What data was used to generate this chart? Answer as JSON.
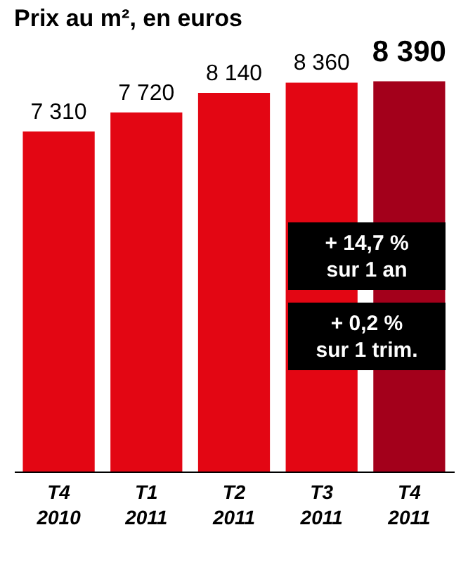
{
  "chart_data": {
    "type": "bar",
    "title": "Prix au m², en euros",
    "categories": [
      "T4\n2010",
      "T1\n2011",
      "T2\n2011",
      "T3\n2011",
      "T4\n2011"
    ],
    "values": [
      7310,
      7720,
      8140,
      8360,
      8390
    ],
    "colors": [
      "#e30613",
      "#e30613",
      "#e30613",
      "#e30613",
      "#a3001b"
    ],
    "data_labels": true,
    "grid": false,
    "annotations": [
      "+ 14,7 %\nsur 1 an",
      "+ 0,2 %\nsur 1 trim."
    ]
  }
}
